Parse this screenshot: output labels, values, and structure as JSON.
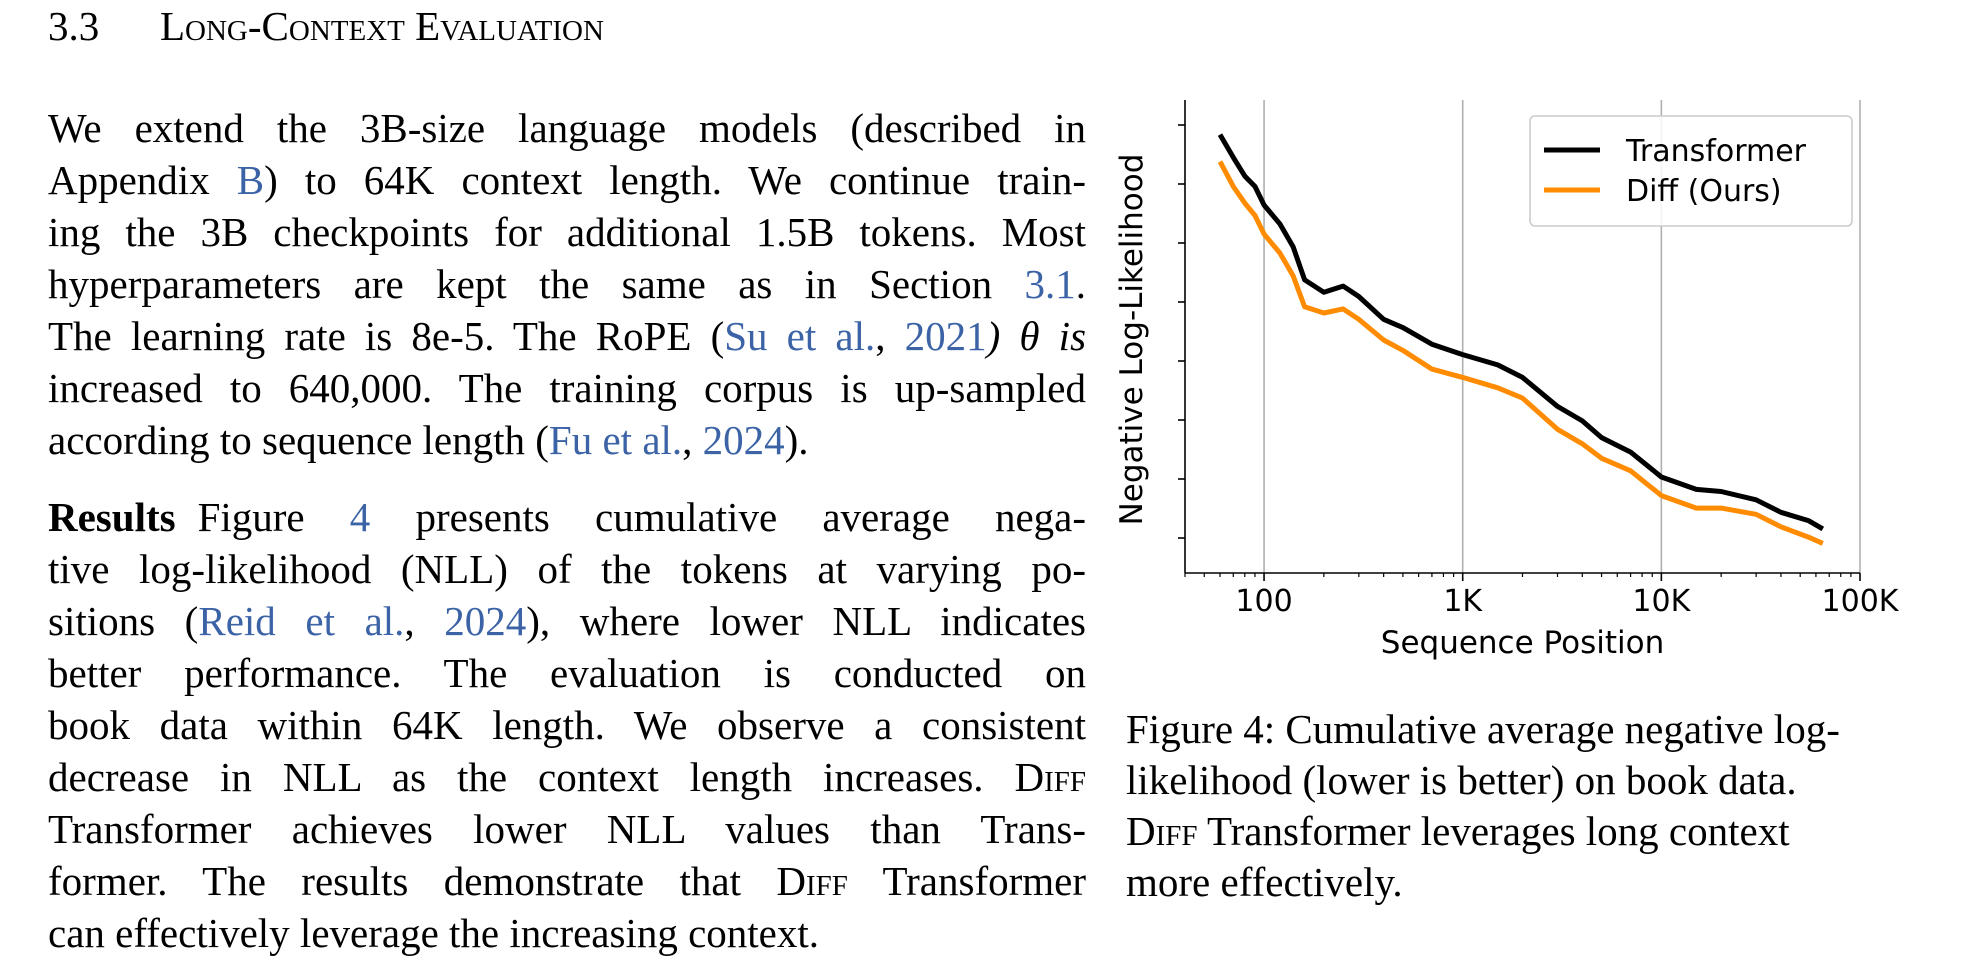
{
  "section": {
    "number": "3.3",
    "title": "Long-Context Evaluation"
  },
  "para1": {
    "l1": "We extend the 3B-size language models (described in",
    "l2_a": "Appendix ",
    "l2_link": "B",
    "l2_b": ") to 64K context length. We continue train-",
    "l3": "ing the 3B checkpoints for additional 1.5B tokens. Most",
    "l4_a": "hyperparameters are kept the same as in Section ",
    "l4_link": "3.1",
    "l4_b": ".",
    "l5_a": "The learning rate is 8e-5. The RoPE (",
    "l5_cite": "Su et al.",
    "l5_sep": ", ",
    "l5_year": "2021",
    "l5_b": ") θ is",
    "l6": "increased to 640,000. The training corpus is up-sampled",
    "l7_a": "according to sequence length (",
    "l7_cite": "Fu et al.",
    "l7_sep": ", ",
    "l7_year": "2024",
    "l7_b": ")."
  },
  "para2": {
    "heading": "Results",
    "l1_a": "Figure ",
    "l1_link": "4",
    "l1_b": " presents cumulative average nega-",
    "l2": "tive log-likelihood (NLL) of the tokens at varying po-",
    "l3_a": "sitions (",
    "l3_cite": "Reid et al.",
    "l3_sep": ", ",
    "l3_year": "2024",
    "l3_b": "), where lower NLL indicates",
    "l4": "better performance.  The evaluation is conducted on",
    "l5": "book data within 64K length. We observe a consistent",
    "l6_a": "decrease in NLL as the context length increases. ",
    "l6_sc": "Diff",
    "l7": "Transformer achieves lower NLL values than Trans-",
    "l8_a": "former. The results demonstrate that ",
    "l8_sc": "Diff",
    "l8_b": " Transformer",
    "l9": "can effectively leverage the increasing context."
  },
  "caption": {
    "l1": "Figure 4: Cumulative average negative log-",
    "l2": "likelihood (lower is better) on book data.",
    "l3_sc": "Diff",
    "l3_b": " Transformer leverages long context",
    "l4": "more effectively."
  },
  "chart_data": {
    "type": "line",
    "xlabel": "Sequence Position",
    "ylabel": "Negative Log-Likelihood",
    "x_scale": "log",
    "xlim": [
      40,
      100000
    ],
    "ylim": [
      0.0,
      1.0
    ],
    "xticks": [
      100,
      1000,
      10000,
      100000
    ],
    "xtick_labels": [
      "100",
      "1K",
      "10K",
      "100K"
    ],
    "y_tick_labels_shown": false,
    "grid": "vertical",
    "legend_position": "top-right",
    "series": [
      {
        "name": "Transformer",
        "color": "#000000",
        "x": [
          60,
          70,
          80,
          90,
          100,
          120,
          140,
          160,
          200,
          250,
          300,
          400,
          500,
          700,
          1000,
          1500,
          2000,
          3000,
          4000,
          5000,
          7000,
          10000,
          15000,
          20000,
          30000,
          40000,
          55000,
          65000
        ],
        "y": [
          0.96,
          0.905,
          0.86,
          0.835,
          0.79,
          0.745,
          0.69,
          0.61,
          0.58,
          0.595,
          0.57,
          0.515,
          0.495,
          0.455,
          0.43,
          0.405,
          0.375,
          0.305,
          0.27,
          0.23,
          0.195,
          0.135,
          0.105,
          0.1,
          0.08,
          0.05,
          0.03,
          0.01
        ]
      },
      {
        "name": "Diff (Ours)",
        "color": "#ff8c00",
        "x": [
          60,
          70,
          80,
          90,
          100,
          120,
          140,
          160,
          200,
          250,
          300,
          400,
          500,
          700,
          1000,
          1500,
          2000,
          3000,
          4000,
          5000,
          7000,
          10000,
          15000,
          20000,
          30000,
          40000,
          55000,
          65000
        ],
        "y": [
          0.895,
          0.835,
          0.795,
          0.765,
          0.72,
          0.675,
          0.62,
          0.545,
          0.53,
          0.54,
          0.515,
          0.465,
          0.44,
          0.395,
          0.375,
          0.35,
          0.325,
          0.25,
          0.215,
          0.18,
          0.15,
          0.09,
          0.06,
          0.06,
          0.045,
          0.015,
          -0.01,
          -0.025
        ]
      }
    ]
  }
}
